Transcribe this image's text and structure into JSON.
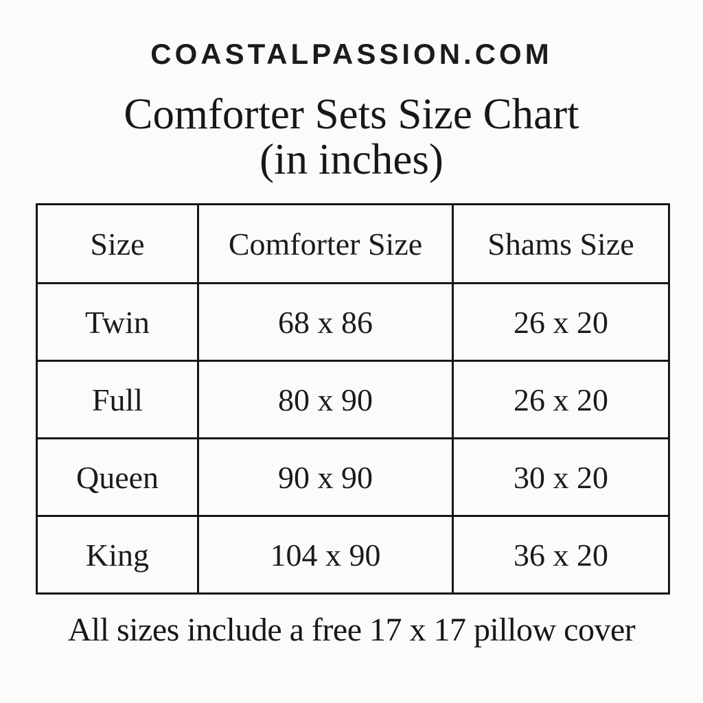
{
  "page": {
    "background_color": "#fbfbf9",
    "text_color": "#1b1b1b",
    "border_color": "#161616"
  },
  "header": {
    "site": "COASTALPASSION.COM"
  },
  "title": {
    "line1": "Comforter Sets Size Chart",
    "line2": "(in inches)"
  },
  "chart_data": {
    "type": "table",
    "title": "Comforter Sets Size Chart (in inches)",
    "units": "inches",
    "columns": [
      "Size",
      "Comforter Size",
      "Shams Size"
    ],
    "rows": [
      [
        "Twin",
        "68 x 86",
        "26 x 20"
      ],
      [
        "Full",
        "80 x 90",
        "26 x 20"
      ],
      [
        "Queen",
        "90 x 90",
        "30 x 20"
      ],
      [
        "King",
        "104 x 90",
        "36 x 20"
      ]
    ],
    "footnote": "All sizes include a free 17 x 17 pillow cover"
  }
}
